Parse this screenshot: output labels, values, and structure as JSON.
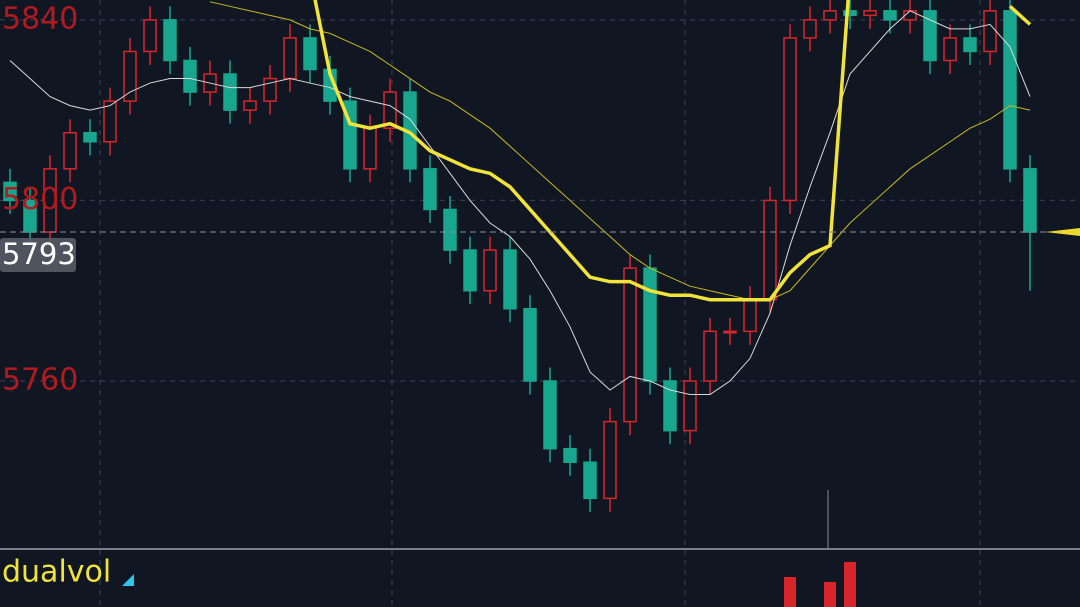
{
  "chart_data": {
    "type": "candlestick",
    "ylim": [
      5723,
      5844.4
    ],
    "yticks": [
      5840,
      5800,
      5760
    ],
    "grid": true,
    "last_price": 5793,
    "up_color": "#d8252c",
    "down_color": "#19a68f",
    "open": [
      5804,
      5800,
      5793,
      5807,
      5815,
      5813,
      5822,
      5833,
      5840,
      5831,
      5824,
      5828,
      5820,
      5822,
      5827,
      5836,
      5829,
      5822,
      5807,
      5816,
      5824,
      5807,
      5798,
      5789,
      5780,
      5789,
      5776,
      5760,
      5745,
      5742,
      5734,
      5751,
      5785,
      5760,
      5749,
      5760,
      5771,
      5771,
      5778,
      5800,
      5836,
      5840,
      5842,
      5841,
      5842,
      5840,
      5842,
      5831,
      5836,
      5833,
      5842,
      5807
    ],
    "high": [
      5807,
      5803,
      5810,
      5818,
      5818,
      5825,
      5836,
      5843,
      5843,
      5834,
      5831,
      5831,
      5825,
      5830,
      5839,
      5839,
      5832,
      5825,
      5819,
      5827,
      5827,
      5810,
      5801,
      5792,
      5792,
      5792,
      5779,
      5763,
      5748,
      5745,
      5754,
      5788,
      5788,
      5763,
      5763,
      5774,
      5774,
      5781,
      5803,
      5839,
      5843,
      5845,
      5845,
      5845,
      5845,
      5845,
      5845,
      5839,
      5839,
      5845,
      5845,
      5810
    ],
    "low": [
      5797,
      5790,
      5790,
      5804,
      5810,
      5810,
      5819,
      5830,
      5828,
      5821,
      5821,
      5817,
      5817,
      5819,
      5824,
      5826,
      5819,
      5804,
      5804,
      5813,
      5804,
      5795,
      5786,
      5777,
      5777,
      5773,
      5757,
      5742,
      5739,
      5731,
      5731,
      5748,
      5757,
      5746,
      5746,
      5757,
      5768,
      5768,
      5775,
      5797,
      5833,
      5837,
      5838,
      5838,
      5837,
      5837,
      5828,
      5828,
      5830,
      5830,
      5804,
      5780
    ],
    "close": [
      5800,
      5793,
      5807,
      5815,
      5813,
      5822,
      5833,
      5840,
      5831,
      5824,
      5828,
      5820,
      5822,
      5827,
      5836,
      5829,
      5822,
      5807,
      5816,
      5824,
      5807,
      5798,
      5789,
      5780,
      5789,
      5776,
      5760,
      5745,
      5742,
      5734,
      5751,
      5785,
      5760,
      5749,
      5760,
      5771,
      5771,
      5778,
      5800,
      5836,
      5840,
      5842,
      5841,
      5842,
      5840,
      5842,
      5831,
      5836,
      5833,
      5842,
      5807,
      5793
    ],
    "lines": [
      {
        "color": "#d9d9d9",
        "width": 1,
        "values": [
          5831,
          5827,
          5823,
          5821,
          5820,
          5821,
          5824,
          5826,
          5827,
          5827,
          5826,
          5825,
          5825,
          5826,
          5827,
          5826,
          5825,
          5823,
          5822,
          5821,
          5818,
          5812,
          5806,
          5800,
          5795,
          5792,
          5787,
          5780,
          5772,
          5762,
          5758,
          5761,
          5760,
          5758,
          5757,
          5757,
          5760,
          5765,
          5775,
          5790,
          5803,
          5815,
          5828,
          5833,
          5838,
          5842,
          5840,
          5838,
          5838,
          5839,
          5834,
          5823
        ]
      },
      {
        "color": "#c9b820",
        "width": 1,
        "values": [
          null,
          null,
          null,
          null,
          null,
          null,
          null,
          null,
          null,
          null,
          5844,
          5843,
          5842,
          5841,
          5840,
          5838,
          5837,
          5835,
          5833,
          5830,
          5827,
          5824,
          5822,
          5819,
          5816,
          5812,
          5808,
          5804,
          5800,
          5796,
          5792,
          5788,
          5785,
          5783,
          5781,
          5780,
          5779,
          5778,
          5778,
          5780,
          5785,
          5790,
          5795,
          5799,
          5803,
          5807,
          5810,
          5813,
          5816,
          5818,
          5821,
          5820
        ]
      },
      {
        "color": "#f2e33a",
        "width": 3.5,
        "values": [
          null,
          null,
          null,
          null,
          null,
          null,
          null,
          null,
          null,
          null,
          null,
          null,
          null,
          null,
          null,
          5850,
          5828,
          5817,
          5816,
          5817,
          5815,
          5811,
          5809,
          5807,
          5806,
          5803,
          5798,
          5793,
          5788,
          5783,
          5782,
          5782,
          5780,
          5779,
          5779,
          5778,
          5778,
          5778,
          5778,
          5784,
          5788,
          5790,
          5850,
          null,
          null,
          null,
          null,
          null,
          null,
          null,
          5843,
          5839
        ]
      }
    ],
    "indicator_label": "dualvol",
    "volume_ylim": [
      0,
      100
    ],
    "volume": [
      null,
      null,
      null,
      null,
      null,
      null,
      null,
      null,
      null,
      null,
      null,
      null,
      null,
      null,
      null,
      null,
      null,
      null,
      null,
      null,
      null,
      null,
      null,
      null,
      null,
      null,
      null,
      null,
      null,
      null,
      null,
      null,
      null,
      null,
      null,
      null,
      null,
      null,
      null,
      60,
      null,
      50,
      90,
      null,
      null,
      null,
      null,
      null,
      null,
      null,
      null,
      null
    ]
  }
}
